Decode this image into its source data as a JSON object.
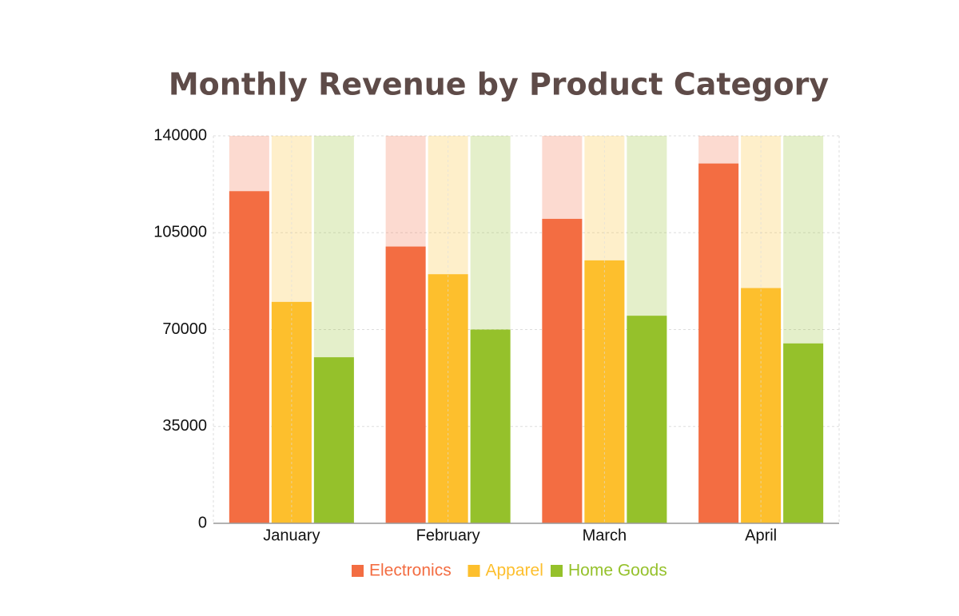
{
  "chart_data": {
    "type": "bar",
    "title": "Monthly Revenue by Product Category",
    "categories": [
      "January",
      "February",
      "March",
      "April"
    ],
    "series": [
      {
        "name": "Electronics",
        "color": "#f36d42",
        "values": [
          120000,
          100000,
          110000,
          130000
        ]
      },
      {
        "name": "Apparel",
        "color": "#fdbf2d",
        "values": [
          80000,
          90000,
          95000,
          85000
        ]
      },
      {
        "name": "Home Goods",
        "color": "#95c12b",
        "values": [
          60000,
          70000,
          75000,
          65000
        ]
      }
    ],
    "ylim": [
      0,
      140000
    ],
    "yticks": [
      0,
      35000,
      70000,
      105000,
      140000
    ],
    "grid": true,
    "legend": "bottom"
  }
}
